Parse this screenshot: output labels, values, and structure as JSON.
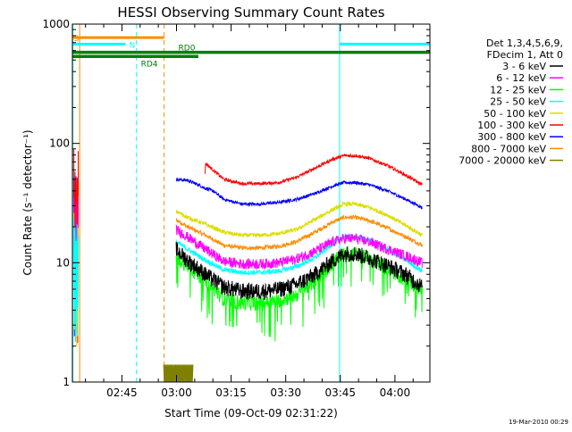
{
  "chart_data": {
    "type": "line",
    "title": "HESSI Observing Summary Count Rates",
    "ylabel": "Count Rate (s⁻¹ detector⁻¹)",
    "xlabel": "Start Time (09-Oct-09 02:31:22)",
    "yscale": "log",
    "ylim": [
      1,
      1000
    ],
    "xlim_minutes_from_0230": [
      1.4,
      99.6
    ],
    "x_ticks": [
      {
        "label": "02:45",
        "t": 15
      },
      {
        "label": "03:00",
        "t": 30
      },
      {
        "label": "03:15",
        "t": 45
      },
      {
        "label": "03:30",
        "t": 60
      },
      {
        "label": "03:45",
        "t": 75
      },
      {
        "label": "04:00",
        "t": 90
      }
    ],
    "y_ticks": [
      {
        "label": "1",
        "v": 1
      },
      {
        "label": "10",
        "v": 10
      },
      {
        "label": "100",
        "v": 100
      },
      {
        "label": "1000",
        "v": 1000
      }
    ],
    "legend_header": [
      "Det 1,3,4,5,6,9,",
      "FDecim 1, Att 0"
    ],
    "series": [
      {
        "name": "3 - 6 keV",
        "color": "#000000",
        "noise": 0.16,
        "dips": 0.0,
        "t": [
          29.9,
          33.0,
          38.0,
          43.0,
          48.0,
          53.0,
          58.0,
          63.0,
          68.0,
          73.0,
          76.0,
          79.0,
          83.0,
          88.0,
          93.0,
          97.5
        ],
        "v": [
          13.0,
          10.5,
          8.0,
          6.3,
          5.8,
          5.8,
          6.0,
          6.6,
          8.0,
          10.5,
          12.0,
          12.0,
          11.0,
          9.5,
          8.0,
          6.3
        ]
      },
      {
        "name": "6 - 12 keV",
        "color": "#ff00ff",
        "noise": 0.1,
        "dips": 0.0,
        "t": [
          29.9,
          33.0,
          38.0,
          43.0,
          48.0,
          53.0,
          58.0,
          63.0,
          68.0,
          73.0,
          76.0,
          79.0,
          83.0,
          88.0,
          93.0,
          97.5
        ],
        "v": [
          19.0,
          16.5,
          13.0,
          10.3,
          9.8,
          9.8,
          10.0,
          10.8,
          12.5,
          15.0,
          16.0,
          16.0,
          15.0,
          13.0,
          11.5,
          10.0
        ]
      },
      {
        "name": "12 - 25 keV",
        "color": "#00ff00",
        "noise": 0.14,
        "dips": 0.05,
        "t": [
          29.9,
          33.0,
          38.0,
          43.0,
          48.0,
          53.0,
          58.0,
          63.0,
          68.0,
          73.0,
          76.0,
          79.0,
          83.0,
          88.0,
          93.0,
          97.5
        ],
        "v": [
          11.0,
          9.5,
          7.0,
          5.0,
          4.6,
          4.6,
          4.8,
          5.4,
          7.0,
          10.0,
          12.0,
          12.0,
          11.0,
          9.0,
          7.3,
          5.8
        ]
      },
      {
        "name": "25 - 50 keV",
        "color": "#00ffff",
        "noise": 0.05,
        "dips": 0.0,
        "t": [
          29.9,
          33.0,
          38.0,
          43.0,
          48.0,
          53.0,
          58.0,
          63.0,
          68.0,
          73.0,
          76.0,
          79.0,
          83.0,
          88.0,
          93.0,
          97.5
        ],
        "v": [
          15.0,
          13.0,
          10.5,
          8.7,
          8.3,
          8.3,
          8.5,
          9.3,
          11.0,
          14.5,
          16.5,
          16.5,
          15.5,
          13.0,
          10.5,
          8.5
        ]
      },
      {
        "name": "50 - 100 keV",
        "color": "#dddd00",
        "noise": 0.04,
        "dips": 0.0,
        "t": [
          29.9,
          33.0,
          38.0,
          43.0,
          48.0,
          53.0,
          58.0,
          63.0,
          68.0,
          73.0,
          76.0,
          79.0,
          83.0,
          88.0,
          93.0,
          97.5
        ],
        "v": [
          27.0,
          24.0,
          21.0,
          18.0,
          17.0,
          17.0,
          17.5,
          19.0,
          23.0,
          28.0,
          31.0,
          31.0,
          29.0,
          25.0,
          20.5,
          17.0
        ]
      },
      {
        "name": "100 - 300 keV",
        "color": "#ff0000",
        "noise": 0.03,
        "dips": 0.0,
        "t": [
          37.8,
          38.0,
          40.0,
          43.0,
          48.0,
          53.0,
          58.0,
          63.0,
          68.0,
          73.0,
          76.0,
          79.0,
          83.0,
          88.0,
          93.0,
          97.5
        ],
        "v": [
          55.0,
          68.0,
          60.0,
          50.0,
          46.0,
          46.0,
          47.0,
          52.0,
          62.0,
          74.0,
          79.0,
          79.0,
          75.0,
          65.0,
          54.0,
          45.0
        ]
      },
      {
        "name": "300 - 800 keV",
        "color": "#0000ff",
        "noise": 0.03,
        "dips": 0.0,
        "t": [
          29.9,
          33.0,
          36.0,
          38.0,
          40.0,
          43.0,
          48.0,
          53.0,
          58.0,
          63.0,
          68.0,
          73.0,
          76.0,
          79.0,
          83.0,
          88.0,
          93.0,
          97.5
        ],
        "v": [
          50.0,
          49.0,
          45.0,
          42.0,
          40.0,
          34.0,
          31.0,
          31.0,
          32.0,
          34.0,
          38.0,
          44.0,
          47.0,
          47.0,
          45.0,
          40.0,
          34.0,
          29.0
        ]
      },
      {
        "name": "800 - 7000 keV",
        "color": "#ff8c00",
        "noise": 0.04,
        "dips": 0.0,
        "t": [
          29.9,
          33.0,
          38.0,
          43.0,
          48.0,
          53.0,
          58.0,
          63.0,
          68.0,
          73.0,
          76.0,
          79.0,
          83.0,
          88.0,
          93.0,
          97.5
        ],
        "v": [
          23.0,
          20.0,
          17.0,
          14.0,
          13.3,
          13.3,
          13.7,
          15.0,
          18.0,
          22.0,
          24.0,
          24.0,
          22.5,
          19.5,
          16.5,
          14.0
        ]
      },
      {
        "name": "7000 - 20000 keV",
        "color": "#808000",
        "noise": 0.0,
        "dips": 0.0,
        "t": [
          26.5,
          34.5
        ],
        "v": [
          1.4,
          1.4
        ]
      }
    ],
    "early_spike": {
      "t": [
        1.8,
        3.0
      ],
      "max": [
        {
          "color": "#0000ff",
          "v": 70
        },
        {
          "color": "#ff0000",
          "v": 105
        },
        {
          "color": "#ff00ff",
          "v": 40
        },
        {
          "color": "#dddd00",
          "v": 30
        },
        {
          "color": "#00ffff",
          "v": 25
        }
      ]
    },
    "state_bars": [
      {
        "label": "S",
        "color": "#ff8c00",
        "level": 770,
        "t0": 1.4,
        "t1": 26.6,
        "label_t": 1.8
      },
      {
        "label": "N",
        "color": "#00ffff",
        "level": 680,
        "t0": 1.4,
        "t1": 16.0,
        "label_t": 17.0
      },
      {
        "label": "",
        "color": "#00ffff",
        "level": 680,
        "t0": 74.8,
        "t1": 99.6,
        "label_t": null
      },
      {
        "label": "RD0",
        "color": "#008000",
        "level": 580,
        "t0": 1.4,
        "t1": 99.6,
        "label_t": 30.5
      },
      {
        "label": "RD4",
        "color": "#008000",
        "level": 535,
        "t0": 1.4,
        "t1": 36.0,
        "label_t": 20.2
      }
    ],
    "vlines": [
      {
        "t": 1.5,
        "color": "#00ffff",
        "dashed": false
      },
      {
        "t": 3.4,
        "color": "#ff8c00",
        "dashed": false
      },
      {
        "t": 19.0,
        "color": "#00ffff",
        "dashed": true
      },
      {
        "t": 26.6,
        "color": "#ff8c00",
        "dashed": true
      },
      {
        "t": 74.8,
        "color": "#00ffff",
        "dashed": false
      },
      {
        "t": 99.6,
        "color": "#00ffff",
        "dashed": true
      }
    ],
    "grid": false,
    "legend_position": "right"
  },
  "footer": {
    "timestamp": "19-Mar-2010 00:29"
  }
}
